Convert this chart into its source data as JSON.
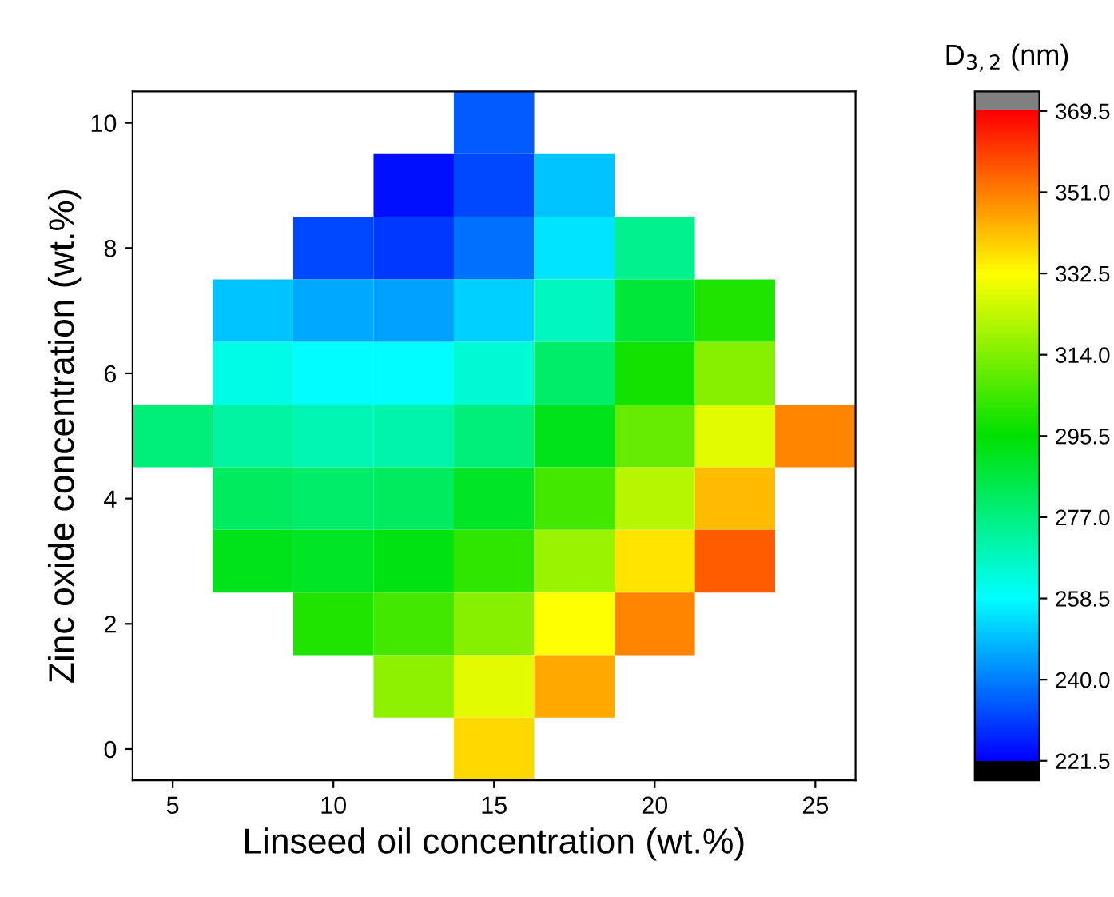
{
  "chart_data": {
    "type": "heatmap",
    "xlabel": "Linseed oil concentration (wt.%)",
    "ylabel": "Zinc oxide concentration (wt.%)",
    "clabel": "D$_{3,2}$ (nm)",
    "categories": [
      "5",
      null,
      "10",
      null,
      "15",
      null,
      "20",
      null,
      "25"
    ],
    "y_categories": [
      "10",
      null,
      "8",
      null,
      "6",
      null,
      "4",
      null,
      "2",
      null,
      "0"
    ],
    "cells": [
      [
        null,
        null,
        null,
        null,
        235,
        null,
        null,
        null,
        null
      ],
      [
        null,
        null,
        null,
        224,
        232,
        250,
        null,
        null,
        null
      ],
      [
        null,
        null,
        232,
        230,
        238,
        255,
        275,
        null,
        null
      ],
      [
        null,
        250,
        246,
        245,
        252,
        268,
        287,
        300,
        null
      ],
      [
        null,
        262,
        258,
        258,
        265,
        280,
        298,
        315,
        null
      ],
      [
        278,
        272,
        270,
        271,
        278,
        292,
        310,
        328,
        350
      ],
      [
        null,
        282,
        280,
        282,
        290,
        305,
        322,
        342,
        null
      ],
      [
        null,
        292,
        290,
        293,
        302,
        318,
        336,
        356,
        null
      ],
      [
        null,
        null,
        300,
        305,
        315,
        332,
        350,
        null,
        null
      ],
      [
        null,
        null,
        null,
        316,
        328,
        345,
        null,
        null,
        null
      ],
      [
        null,
        null,
        null,
        null,
        338,
        null,
        null,
        null,
        null
      ]
    ],
    "clim": [
      221.5,
      369.5
    ],
    "cticks": [
      221.5,
      {
        "value": 240,
        "label": "240.0"
      },
      258.5,
      {
        "value": 277,
        "label": "277.0"
      },
      295.5,
      {
        "value": 314,
        "label": "314.0"
      },
      332.5,
      {
        "value": 351,
        "label": "351.0"
      },
      369.5
    ]
  }
}
